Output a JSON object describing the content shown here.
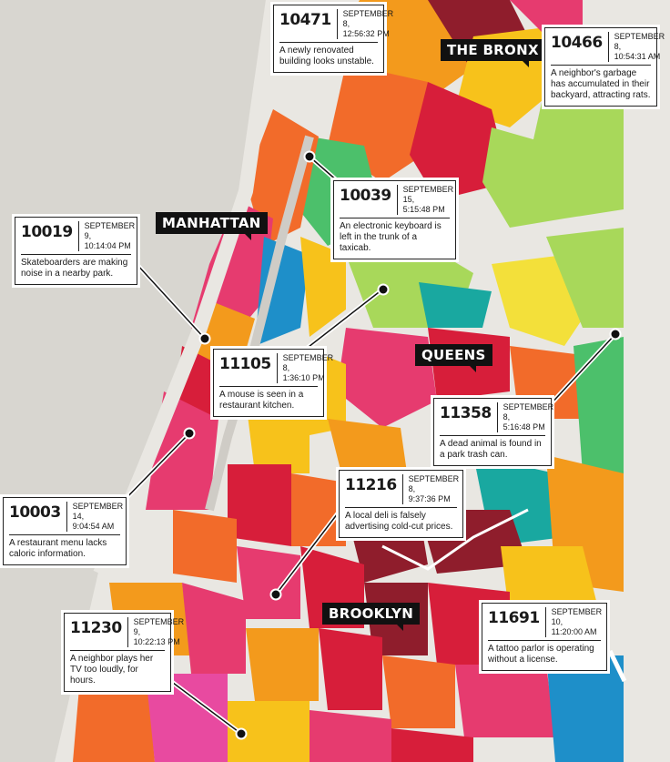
{
  "boroughs": {
    "bronx": "THE BRONX",
    "manhattan": "MANHATTAN",
    "queens": "QUEENS",
    "brooklyn": "BROOKLYN"
  },
  "colors": {
    "background": "#e9e7e2",
    "water": "#1e8fc9",
    "land_gray": "#cfccc6",
    "palette": [
      "#f7c21b",
      "#f39a1c",
      "#f26b2a",
      "#e63b6f",
      "#d71e3a",
      "#8f1d2c",
      "#a8d85a",
      "#4cc06b",
      "#19a8a0",
      "#2a8fd0",
      "#f3e03a",
      "#e84aa0"
    ]
  },
  "complaints": [
    {
      "zip": "10471",
      "date": "SEPTEMBER 8,",
      "time": "12:56:32 PM",
      "text": "A newly renovated building looks unstable."
    },
    {
      "zip": "10466",
      "date": "SEPTEMBER 8,",
      "time": "10:54:31 AM",
      "text": "A neighbor's garbage has accumulated in their backyard, attracting rats."
    },
    {
      "zip": "10039",
      "date": "SEPTEMBER 15,",
      "time": "5:15:48 PM",
      "text": "An electronic keyboard is left in the trunk of a taxicab."
    },
    {
      "zip": "10019",
      "date": "SEPTEMBER 9,",
      "time": "10:14:04 PM",
      "text": "Skateboarders are making noise in a nearby park."
    },
    {
      "zip": "11105",
      "date": "SEPTEMBER 8,",
      "time": "1:36:10 PM",
      "text": "A mouse is seen in a restaurant kitchen."
    },
    {
      "zip": "11358",
      "date": "SEPTEMBER 8,",
      "time": "5:16:48 PM",
      "text": "A dead animal is found in a park trash can."
    },
    {
      "zip": "10003",
      "date": "SEPTEMBER 14,",
      "time": "9:04:54 AM",
      "text": "A restaurant menu lacks caloric information."
    },
    {
      "zip": "11216",
      "date": "SEPTEMBER 8,",
      "time": "9:37:36 PM",
      "text": "A local deli is falsely advertising cold-cut prices."
    },
    {
      "zip": "11230",
      "date": "SEPTEMBER 9,",
      "time": "10:22:13 PM",
      "text": "A neighbor plays her TV too loudly, for hours."
    },
    {
      "zip": "11691",
      "date": "SEPTEMBER 10,",
      "time": "11:20:00 AM",
      "text": "A tattoo parlor is operating without a license."
    }
  ]
}
